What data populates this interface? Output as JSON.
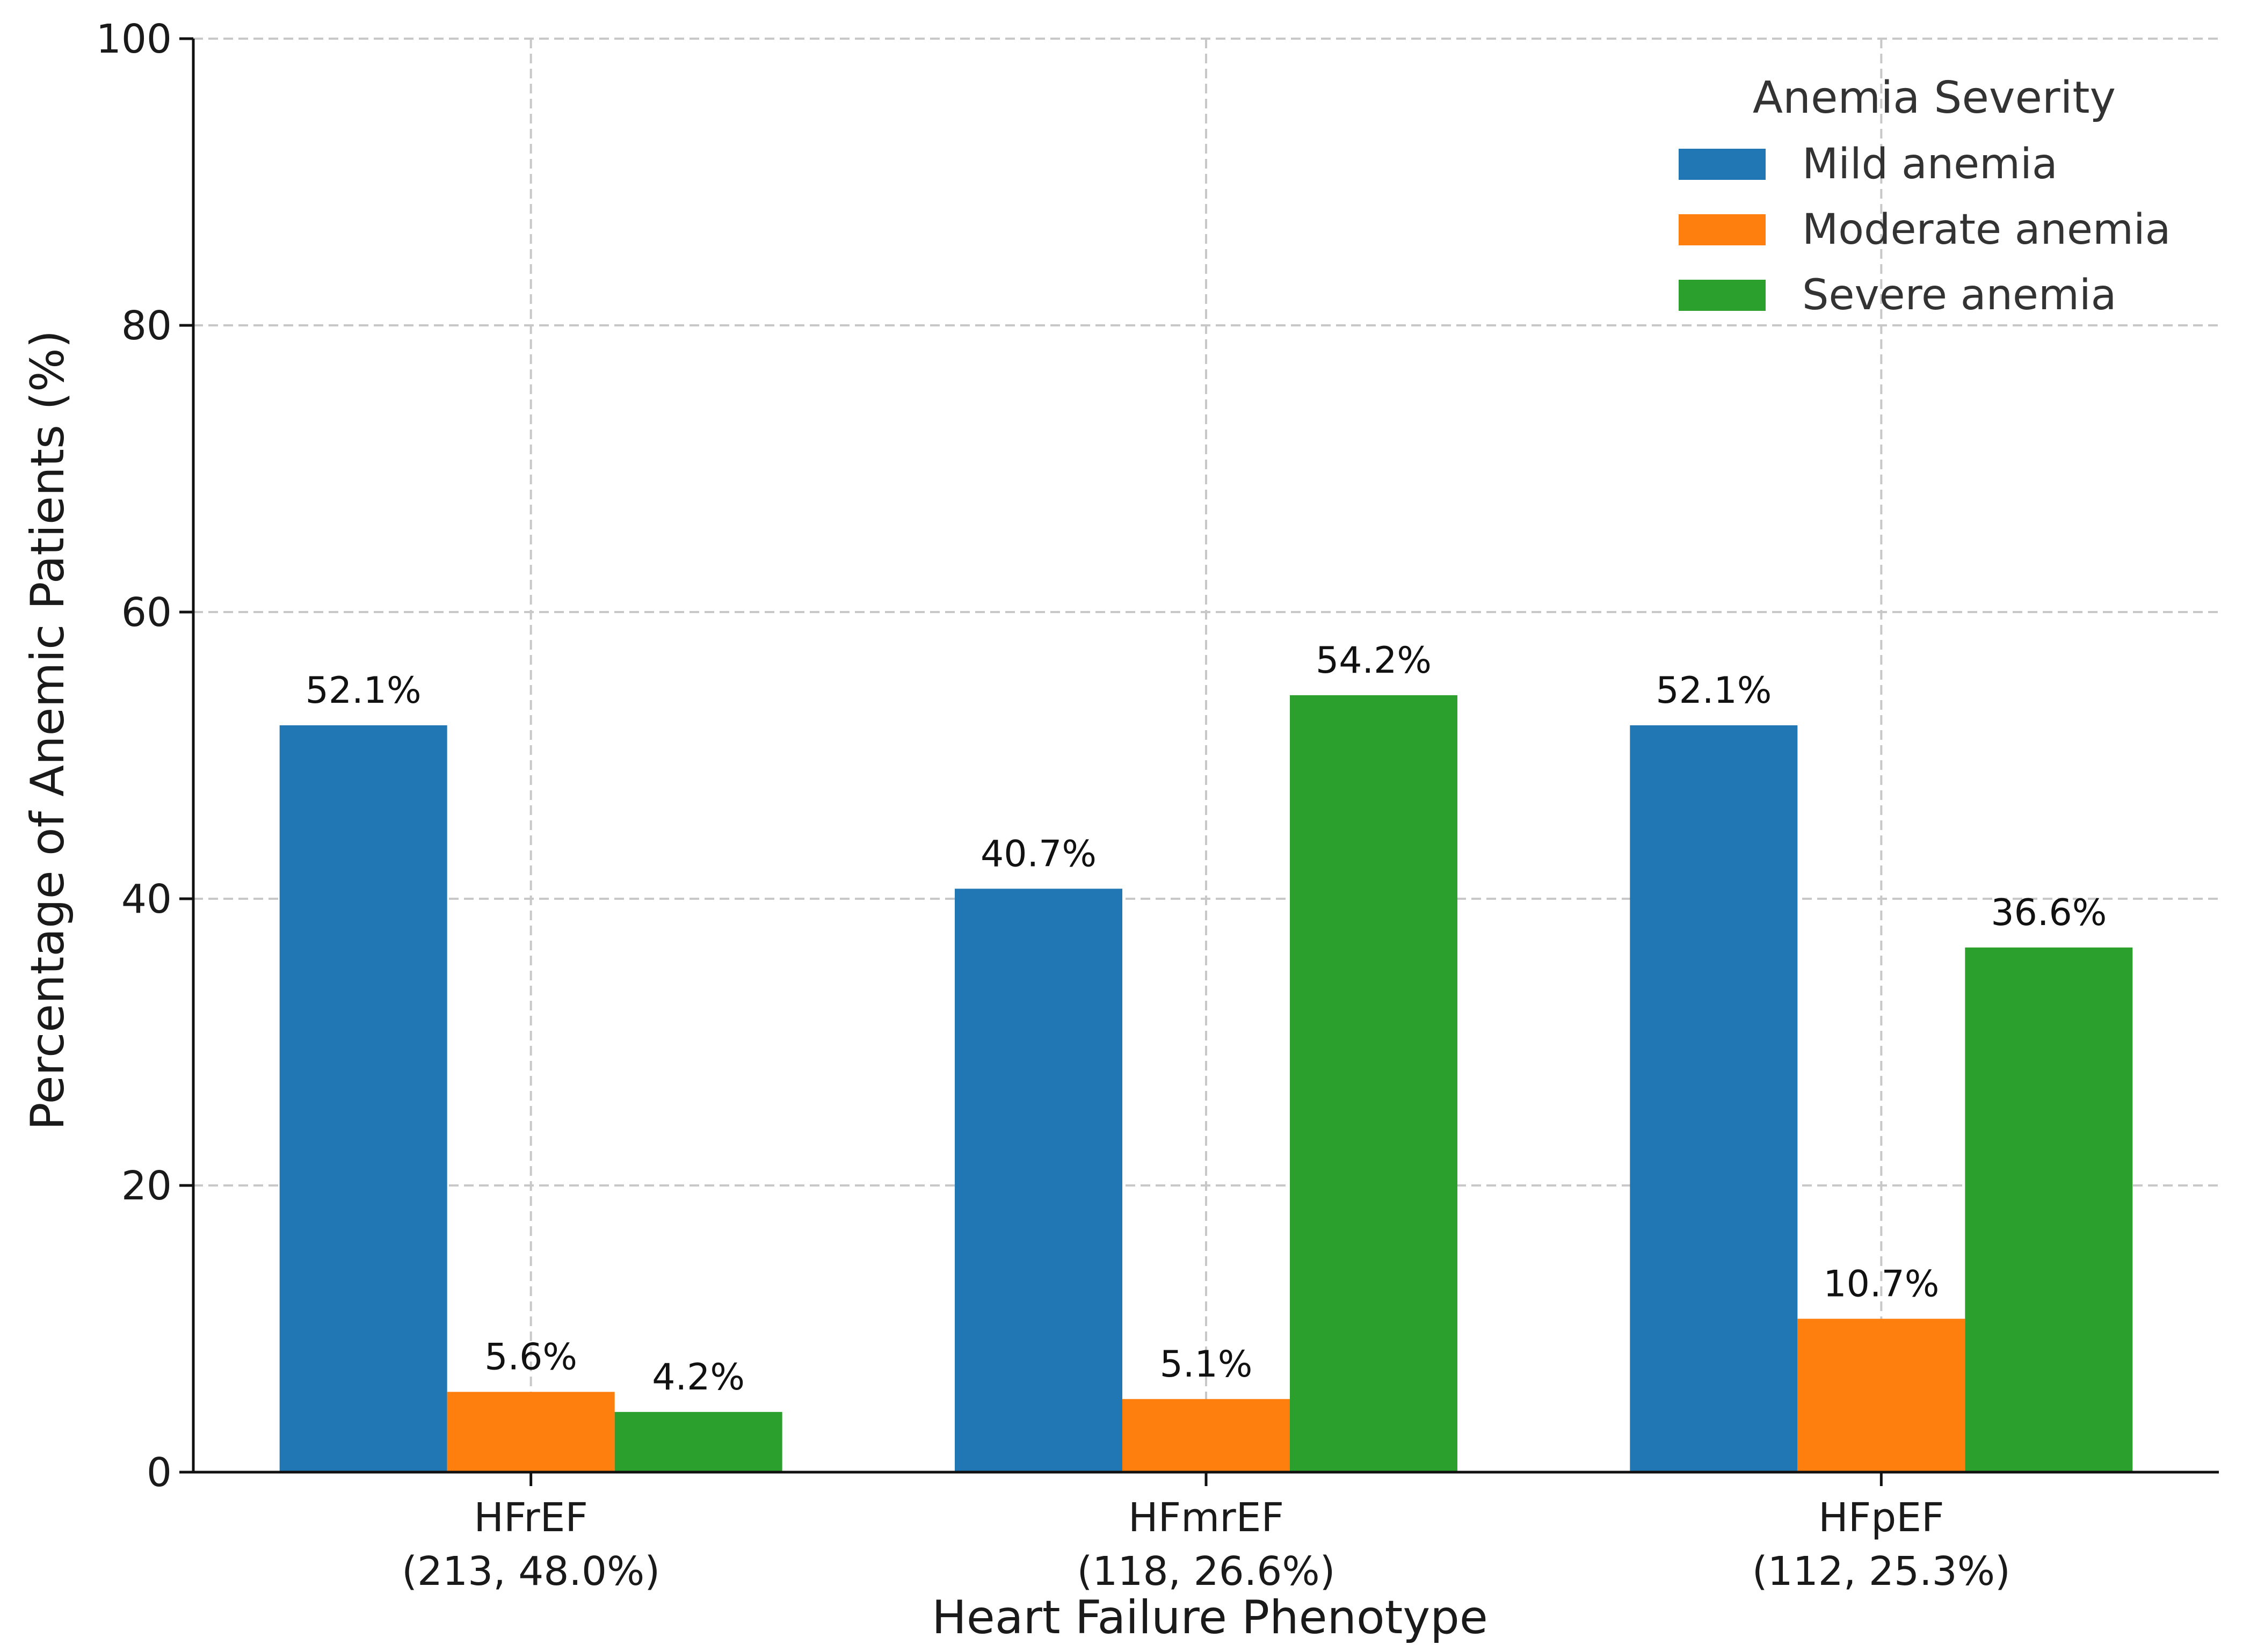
{
  "chart_data": {
    "type": "bar",
    "title": "",
    "xlabel": "Heart Failure Phenotype",
    "ylabel": "Percentage of Anemic Patients (%)",
    "ylim": [
      0,
      100
    ],
    "yticks": [
      0,
      20,
      40,
      60,
      80,
      100
    ],
    "grid": true,
    "categories": [
      [
        "HFrEF",
        "(213, 48.0%)"
      ],
      [
        "HFmrEF",
        "(118, 26.6%)"
      ],
      [
        "HFpEF",
        "(112, 25.3%)"
      ]
    ],
    "series": [
      {
        "name": "Mild anemia",
        "color": "#2077b4",
        "values": [
          52.1,
          40.7,
          52.1
        ],
        "labels": [
          "52.1%",
          "40.7%",
          "52.1%"
        ]
      },
      {
        "name": "Moderate anemia",
        "color": "#fe7f0e",
        "values": [
          5.6,
          5.1,
          10.7
        ],
        "labels": [
          "5.6%",
          "5.1%",
          "10.7%"
        ]
      },
      {
        "name": "Severe anemia",
        "color": "#2ca02c",
        "values": [
          4.2,
          54.2,
          36.6
        ],
        "labels": [
          "4.2%",
          "54.2%",
          "36.6%"
        ]
      }
    ],
    "legend": {
      "title": "Anemia Severity",
      "position": "top-right"
    }
  }
}
